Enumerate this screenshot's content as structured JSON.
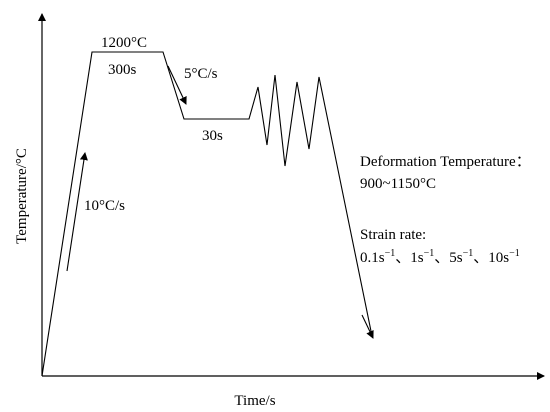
{
  "axes": {
    "xlabel": "Time/s",
    "ylabel": "Temperature/°C"
  },
  "annotations": {
    "heating_rate": "10°C/s",
    "hold_temperature": "1200°C",
    "hold_time": "300s",
    "cooling_rate": "5°C/s",
    "isothermal_time": "30s",
    "deformation_temperature_label": "Deformation Temperature：",
    "deformation_temperature_range": "900~1150°C",
    "strain_rate_label": "Strain rate:",
    "strain_rates": [
      {
        "base": "0.1s",
        "sup": "−1"
      },
      {
        "base": "1s",
        "sup": "−1"
      },
      {
        "base": "5s",
        "sup": "−1"
      },
      {
        "base": "10s",
        "sup": "−1"
      }
    ],
    "strain_rate_separator": "、"
  }
}
